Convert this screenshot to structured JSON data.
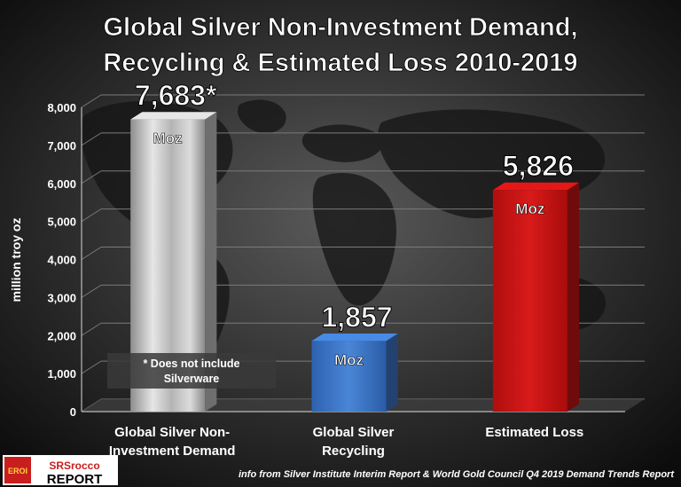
{
  "chart_data": {
    "type": "bar",
    "title_lines": [
      "Global Silver Non-Investment Demand,",
      "Recycling & Estimated Loss 2010-2019"
    ],
    "ylabel": "million troy oz",
    "ylim": [
      0,
      8000
    ],
    "yticks": [
      "0",
      "1,000",
      "2,000",
      "3,000",
      "4,000",
      "5,000",
      "6,000",
      "7,000",
      "8,000"
    ],
    "grid": true,
    "bars": [
      {
        "label_lines": [
          "Global  Silver  Non-",
          "Investment Demand"
        ],
        "value": 7683,
        "value_label": "7,683*",
        "unit_label": "Moz",
        "color": "#c8c8c8"
      },
      {
        "label_lines": [
          "Global  Silver",
          "Recycling"
        ],
        "value": 1857,
        "value_label": "1,857",
        "unit_label": "Moz",
        "color": "#3f78c9"
      },
      {
        "label_lines": [
          "Estimated Loss"
        ],
        "value": 5826,
        "value_label": "5,826",
        "unit_label": "Moz",
        "color": "#c91414"
      }
    ],
    "note_lines": [
      "* Does not include",
      "Silverware"
    ],
    "source": "info from Silver Institute Interim Report & World Gold Council Q4 2019 Demand Trends Report"
  },
  "logo": {
    "badge_text": "EROI",
    "brand_top": "SRSrocco",
    "brand_bottom": "REPORT"
  }
}
